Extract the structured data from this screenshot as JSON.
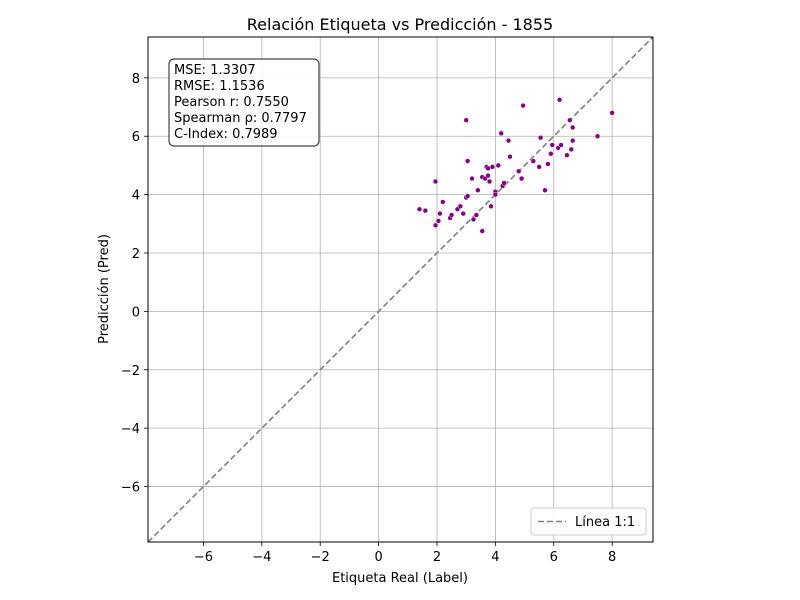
{
  "chart_data": {
    "type": "scatter",
    "title": "Relación Etiqueta vs Predicción - 1855",
    "xlabel": "Etiqueta Real (Label)",
    "ylabel": "Predicción (Pred)",
    "xlim": [
      -7.9,
      9.4
    ],
    "ylim": [
      -7.9,
      9.4
    ],
    "xticks": [
      -6,
      -4,
      -2,
      0,
      2,
      4,
      6,
      8
    ],
    "yticks": [
      -6,
      -4,
      -2,
      0,
      2,
      4,
      6,
      8
    ],
    "xtick_labels": [
      "−6",
      "−4",
      "−2",
      "0",
      "2",
      "4",
      "6",
      "8"
    ],
    "ytick_labels": [
      "−6",
      "−4",
      "−2",
      "0",
      "2",
      "4",
      "6",
      "8"
    ],
    "grid": true,
    "point_color": "#800080",
    "line_color": "#808080",
    "stats": [
      "MSE: 1.3307",
      "RMSE: 1.1536",
      "Pearson r: 0.7550",
      "Spearman ρ: 0.7797",
      "C-Index: 0.7989"
    ],
    "legend": {
      "label": "Línea 1:1",
      "position": "lower-right"
    },
    "points": [
      [
        1.4,
        3.5
      ],
      [
        1.6,
        3.45
      ],
      [
        1.95,
        4.45
      ],
      [
        1.95,
        2.95
      ],
      [
        2.05,
        3.1
      ],
      [
        2.1,
        3.35
      ],
      [
        2.2,
        3.75
      ],
      [
        2.45,
        3.2
      ],
      [
        2.5,
        3.3
      ],
      [
        2.7,
        3.5
      ],
      [
        2.8,
        3.6
      ],
      [
        2.9,
        3.35
      ],
      [
        3.0,
        3.9
      ],
      [
        3.05,
        3.95
      ],
      [
        3.0,
        6.55
      ],
      [
        3.05,
        5.15
      ],
      [
        3.2,
        4.55
      ],
      [
        3.25,
        3.15
      ],
      [
        3.35,
        3.3
      ],
      [
        3.4,
        4.15
      ],
      [
        3.55,
        4.6
      ],
      [
        3.55,
        2.75
      ],
      [
        3.65,
        4.55
      ],
      [
        3.7,
        4.95
      ],
      [
        3.75,
        4.9
      ],
      [
        3.75,
        4.65
      ],
      [
        3.8,
        4.45
      ],
      [
        3.85,
        3.6
      ],
      [
        3.9,
        4.95
      ],
      [
        4.0,
        4.1
      ],
      [
        4.0,
        4.0
      ],
      [
        4.1,
        5.0
      ],
      [
        4.2,
        6.1
      ],
      [
        4.25,
        4.3
      ],
      [
        4.3,
        4.4
      ],
      [
        4.45,
        5.85
      ],
      [
        4.5,
        5.3
      ],
      [
        4.8,
        4.8
      ],
      [
        4.9,
        4.55
      ],
      [
        4.95,
        7.05
      ],
      [
        5.3,
        5.15
      ],
      [
        5.5,
        4.95
      ],
      [
        5.55,
        5.95
      ],
      [
        5.7,
        4.15
      ],
      [
        5.8,
        5.05
      ],
      [
        5.9,
        5.4
      ],
      [
        5.95,
        5.7
      ],
      [
        6.15,
        5.6
      ],
      [
        6.2,
        7.25
      ],
      [
        6.25,
        5.7
      ],
      [
        6.45,
        5.35
      ],
      [
        6.55,
        6.55
      ],
      [
        6.6,
        5.55
      ],
      [
        6.65,
        5.85
      ],
      [
        6.65,
        6.3
      ],
      [
        7.5,
        6.0
      ],
      [
        8.0,
        6.8
      ]
    ]
  }
}
